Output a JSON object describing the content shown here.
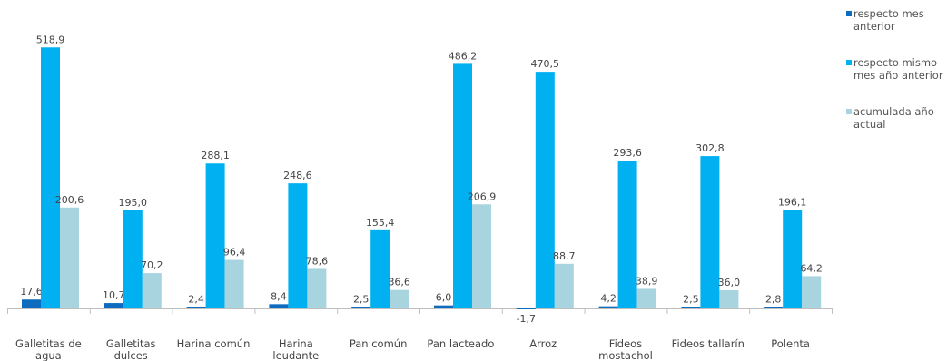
{
  "chart_data": {
    "type": "bar",
    "categories": [
      [
        "Galletitas de",
        "agua"
      ],
      [
        "Galletitas",
        "dulces"
      ],
      [
        "Harina común"
      ],
      [
        "Harina",
        "leudante"
      ],
      [
        "Pan común"
      ],
      [
        "Pan lacteado"
      ],
      [
        "Arroz"
      ],
      [
        "Fideos",
        "mostachol"
      ],
      [
        "Fideos tallarín"
      ],
      [
        "Polenta"
      ]
    ],
    "series": [
      {
        "name": [
          "respecto mes",
          "anterior"
        ],
        "color": "#0d6cc0",
        "values": [
          17.6,
          10.7,
          2.4,
          8.4,
          2.5,
          6.0,
          -1.7,
          4.2,
          2.5,
          2.8
        ],
        "labels": [
          "17,6",
          "10,7",
          "2,4",
          "8,4",
          "2,5",
          "6,0",
          "-1,7",
          "4,2",
          "2,5",
          "2,8"
        ]
      },
      {
        "name": [
          "respecto mismo",
          "mes año anterior"
        ],
        "color": "#00b0f0",
        "values": [
          518.9,
          195.0,
          288.1,
          248.6,
          155.4,
          486.2,
          470.5,
          293.6,
          302.8,
          196.1
        ],
        "labels": [
          "518,9",
          "195,0",
          "288,1",
          "248,6",
          "155,4",
          "486,2",
          "470,5",
          "293,6",
          "302,8",
          "196,1"
        ]
      },
      {
        "name": [
          "acumulada año",
          "actual"
        ],
        "color": "#a8d4e0",
        "values": [
          200.6,
          70.2,
          96.4,
          78.6,
          36.6,
          206.9,
          88.7,
          38.9,
          36.0,
          64.2
        ],
        "labels": [
          "200,6",
          "70,2",
          "96,4",
          "78,6",
          "36,6",
          "206,9",
          "88,7",
          "38,9",
          "36,0",
          "64,2"
        ]
      }
    ],
    "ylim": [
      -1.7,
      518.9
    ],
    "grid": false,
    "legend_position": "top-right"
  }
}
